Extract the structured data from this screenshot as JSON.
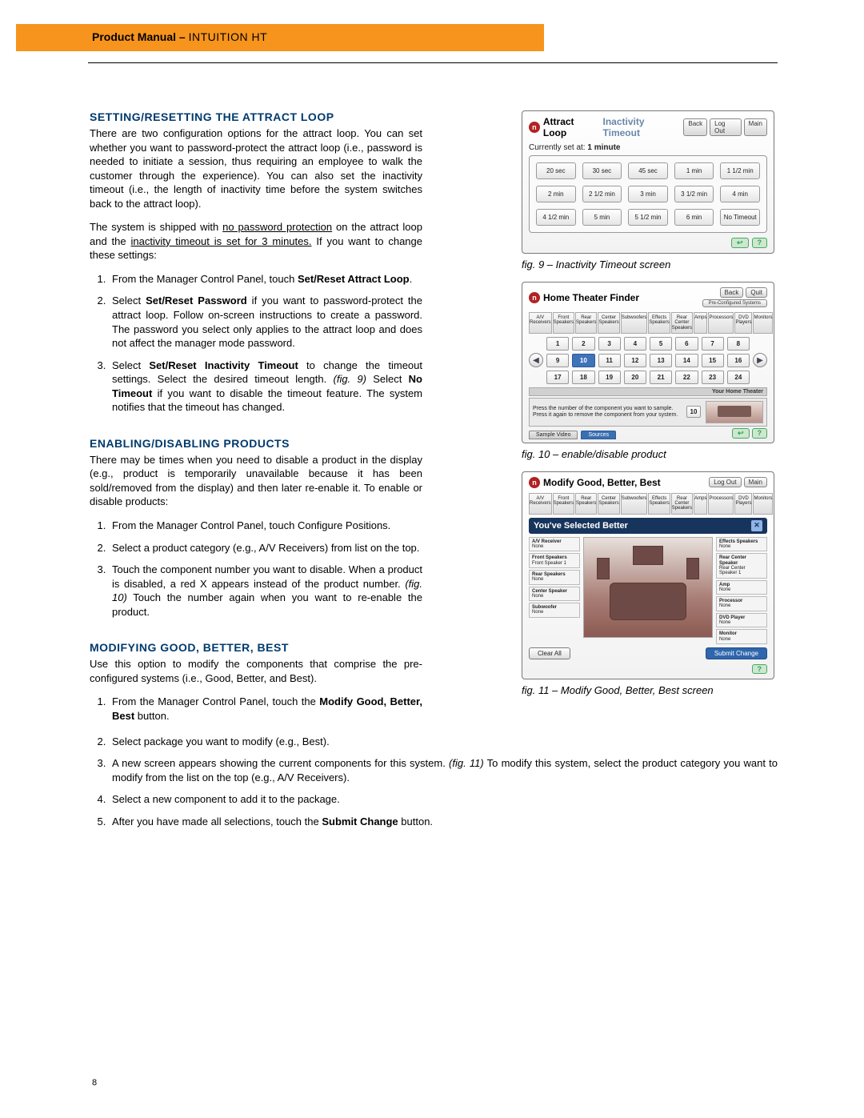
{
  "header": {
    "title_bold": "Product Manual – ",
    "title_light": "INTUITION HT"
  },
  "section1": {
    "heading": "Setting/Resetting the Attract Loop",
    "para1_pre": "There are two configuration options for the attract loop. You can set whether you want to password-protect the attract loop (i.e., password is needed to initiate a session, thus requiring an employee to walk the customer through the experience). You can also set the inactivity timeout (i.e., the length of inactivity time before the system switches back to the attract loop).",
    "para2_pre": "The system is shipped with ",
    "para2_u1": "no password protection",
    "para2_mid": " on the attract loop and the ",
    "para2_u2": "inactivity timeout is set for 3 minutes.",
    "para2_post": " If you want to change these settings:",
    "steps": [
      {
        "pre": "From the Manager Control Panel, touch ",
        "b1": "Set/Reset Attract Loop",
        "post": "."
      },
      {
        "pre": "Select ",
        "b1": "Set/Reset Password",
        "post": " if you want to password-protect the attract loop. Follow on-screen instructions to create a password. The password you select only applies to the attract loop and does not affect the manager mode password."
      },
      {
        "pre": "Select ",
        "b1": "Set/Reset Inactivity Timeout",
        "mid": " to change the timeout settings. Select the desired timeout length. ",
        "i1": "(fig. 9)",
        "mid2": " Select ",
        "b2": "No Timeout",
        "post": " if you want to disable the timeout feature. The system notifies that the timeout has changed."
      }
    ]
  },
  "section2": {
    "heading": "Enabling/Disabling Products",
    "para1": "There may be times when you need to disable a product in the display (e.g., product is temporarily unavailable because it has been sold/removed from the display) and then later re-enable it. To enable or disable products:",
    "steps": [
      {
        "text": "From the Manager Control Panel, touch Configure Positions."
      },
      {
        "text": "Select a product category (e.g., A/V Receivers) from list on the top."
      },
      {
        "pre": "Touch the component number you want to disable. When a product is disabled, a red X appears instead of the product number. ",
        "i1": "(fig. 10)",
        "post": " Touch the number again when you want to re-enable the product."
      }
    ]
  },
  "section3": {
    "heading": "Modifying Good, Better, Best",
    "para1": "Use this option to modify the components that comprise the pre-configured systems (i.e., Good, Better, and Best).",
    "steps_left": [
      {
        "pre": "From the Manager Control Panel, touch the ",
        "b1": "Modify Good, Better, Best",
        "post": " button."
      }
    ],
    "steps_full": [
      {
        "text": "Select package you want to modify (e.g., Best)."
      },
      {
        "pre": "A new screen appears showing the current components for this system. ",
        "i1": "(fig. 11)",
        "post": " To modify this system, select the product category you want to modify from the list on the top (e.g., A/V Receivers)."
      },
      {
        "text": "Select a new component to add it to the package."
      },
      {
        "pre": "After you have made all selections, touch the ",
        "b1": "Submit Change",
        "post": " button."
      }
    ]
  },
  "fig9": {
    "title_main": "Attract Loop",
    "title_sub": "Inactivity Timeout",
    "buttons_top": [
      "Back",
      "Log Out",
      "Main"
    ],
    "current_label": "Currently set at: ",
    "current_value": "1 minute",
    "options": [
      "20 sec",
      "30 sec",
      "45 sec",
      "1 min",
      "1 1/2 min",
      "2 min",
      "2 1/2 min",
      "3 min",
      "3 1/2 min",
      "4 min",
      "4 1/2 min",
      "5 min",
      "5 1/2 min",
      "6 min",
      "No Timeout"
    ],
    "footer": [
      "↩",
      "?"
    ],
    "caption": "fig. 9 – Inactivity Timeout screen"
  },
  "fig10": {
    "title_main": "Home Theater Finder",
    "buttons_top": [
      "Back",
      "Quit"
    ],
    "pre_config": "Pre-Configured Systems",
    "categories": [
      "A/V Receivers",
      "Front Speakers",
      "Rear Speakers",
      "Center Speakers",
      "Subwoofers",
      "Effects Speakers",
      "Rear Center Speakers",
      "Amps",
      "Processors",
      "DVD Players",
      "Monitors"
    ],
    "numbers": [
      1,
      2,
      3,
      4,
      5,
      6,
      7,
      8,
      9,
      10,
      11,
      12,
      13,
      14,
      15,
      16,
      17,
      18,
      19,
      20,
      21,
      22,
      23,
      24
    ],
    "selected": 10,
    "strip_label": "Your Home Theater",
    "hint_line1": "Press the number of the component you want to sample.",
    "hint_line2": "Press it again to remove the component from your system.",
    "hint_badge": "10",
    "footer_tabs": [
      "Sample Video",
      "Sources"
    ],
    "footer": [
      "↩",
      "?"
    ],
    "caption": "fig. 10 – enable/disable product"
  },
  "fig11": {
    "title_main": "Modify Good, Better, Best",
    "buttons_top": [
      "Log Out",
      "Main"
    ],
    "categories": [
      "A/V Receivers",
      "Front Speakers",
      "Rear Speakers",
      "Center Speakers",
      "Subwoofers",
      "Effects Speakers",
      "Rear Center Speakers",
      "Amps",
      "Processors",
      "DVD Players",
      "Monitors"
    ],
    "selected_bar": "You've Selected Better",
    "close_glyph": "✕",
    "left_items": [
      {
        "lbl": "A/V Receiver",
        "sub": "None"
      },
      {
        "lbl": "Front Speakers",
        "sub": "Front Speaker 1"
      },
      {
        "lbl": "Rear Speakers",
        "sub": "None"
      },
      {
        "lbl": "Center Speaker",
        "sub": "None"
      },
      {
        "lbl": "Subwoofer",
        "sub": "None"
      }
    ],
    "right_items": [
      {
        "lbl": "Effects Speakers",
        "sub": "None"
      },
      {
        "lbl": "Rear Center Speaker",
        "sub": "Rear Center Speaker 1"
      },
      {
        "lbl": "Amp",
        "sub": "None"
      },
      {
        "lbl": "Processor",
        "sub": "None"
      },
      {
        "lbl": "DVD Player",
        "sub": "None"
      },
      {
        "lbl": "Monitor",
        "sub": "None"
      }
    ],
    "clear_btn": "Clear All",
    "submit_btn": "Submit Change",
    "footer": [
      "?"
    ],
    "caption": "fig. 11 – Modify Good, Better, Best screen"
  },
  "page_number": "8",
  "colors": {
    "orange": "#f7941d",
    "heading_blue": "#003a6d",
    "panel_blue": "#17345c"
  }
}
